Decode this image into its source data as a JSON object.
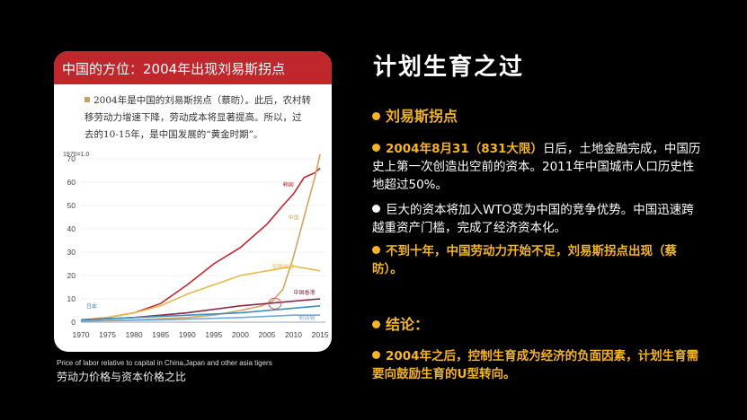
{
  "card": {
    "title": "中国的方位：2004年出现刘易斯拐点",
    "note_lines": [
      "2004年是中国的刘易斯拐点（蔡昉）。此后，农村转",
      "移劳动力增速下降，劳动成本将显著提高。所以，过",
      "去的10-15年，是中国发展的“黄金时期”。"
    ]
  },
  "chart_data": {
    "type": "line",
    "title": "Price of labor relative to capital in China,Japan and other asia tigers",
    "ylabel_note": "1970=1.0",
    "xlim": [
      1970,
      2016
    ],
    "ylim": [
      0,
      70
    ],
    "x_ticks": [
      1970,
      1975,
      1980,
      1985,
      1990,
      1995,
      2000,
      2005,
      2010,
      2015
    ],
    "y_ticks": [
      0,
      10,
      20,
      30,
      40,
      50,
      60,
      70
    ],
    "series": [
      {
        "name": "韩国",
        "color": "#c4262e",
        "x": [
          1970,
          1975,
          1980,
          1985,
          1990,
          1995,
          2000,
          2005,
          2008,
          2010,
          2012,
          2014,
          2015
        ],
        "y": [
          1,
          2,
          4,
          8,
          16,
          25,
          32,
          42,
          50,
          55,
          62,
          64,
          66
        ]
      },
      {
        "name": "中国",
        "color": "#d4a55a",
        "x": [
          1970,
          1980,
          1990,
          1995,
          2000,
          2004,
          2006,
          2008,
          2010,
          2012,
          2014,
          2015
        ],
        "y": [
          0.5,
          1,
          2,
          3,
          5,
          7,
          9,
          14,
          28,
          45,
          62,
          72
        ]
      },
      {
        "name": "中国台湾",
        "color": "#e8b84a",
        "x": [
          1970,
          1975,
          1980,
          1985,
          1990,
          1995,
          2000,
          2005,
          2010,
          2015
        ],
        "y": [
          1,
          2,
          4,
          7,
          12,
          16,
          20,
          22,
          24,
          22
        ]
      },
      {
        "name": "中国香港",
        "color": "#8a2a4a",
        "x": [
          1970,
          1980,
          1990,
          2000,
          2005,
          2010,
          2015
        ],
        "y": [
          1,
          2,
          4,
          7,
          8,
          9,
          10
        ]
      },
      {
        "name": "日本",
        "color": "#3a8fbf",
        "x": [
          1970,
          1980,
          1990,
          2000,
          2010,
          2015
        ],
        "y": [
          1,
          2,
          3,
          4,
          6,
          7
        ]
      },
      {
        "name": "新加坡",
        "color": "#6fa8dc",
        "x": [
          1970,
          1985,
          2000,
          2010,
          2015
        ],
        "y": [
          0.5,
          1,
          2,
          3,
          3
        ]
      }
    ],
    "annotation": "2004 circle on 中国 series"
  },
  "captions": {
    "english": "Price of labor relative to capital in China,Japan and other asia tigers",
    "chinese": "劳动力价格与资本价格之比"
  },
  "slide": {
    "title": "计划生育之过",
    "section1": "刘易斯拐点",
    "b1_bold": "2004年8月31（831大限）",
    "b1_rest": "日后，土地金融完成，中国历史上第一次创造出空前的资本。2011年中国城市人口历史性地超过50%。",
    "b2": "巨大的资本将加入WTO变为中国的竞争优势。中国迅速跨越重资产门槛，完成了经济资本化。",
    "b3": "不到十年，中国劳动力开始不足，刘易斯拐点出现（蔡昉）。",
    "section2": "结论：",
    "b4": "2004年之后，控制生育成为经济的负面因素，计划生育需要向鼓励生育的U型转向。"
  },
  "colors": {
    "accent": "#f5b422",
    "header_red": "#c0272d"
  }
}
